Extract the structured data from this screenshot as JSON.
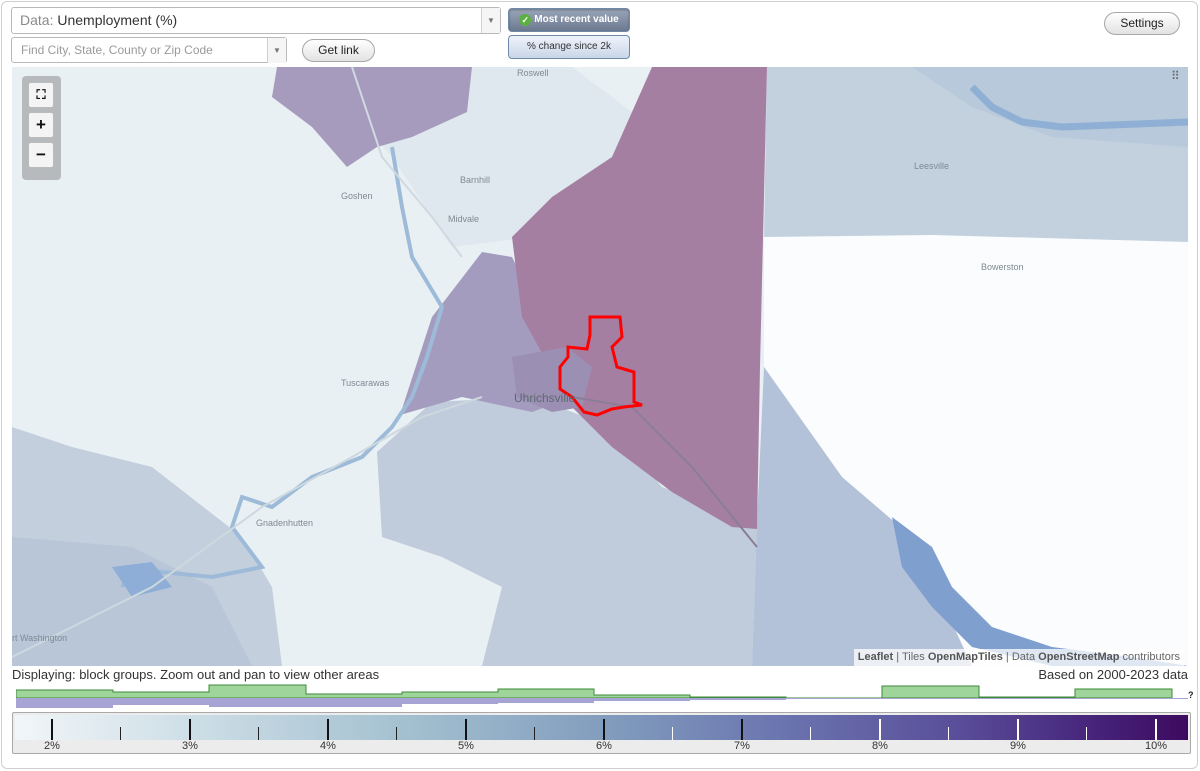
{
  "controls": {
    "data_prefix": "Data:",
    "data_value": "Unemployment (%)",
    "search_placeholder": "Find City, State, County or Zip Code",
    "get_link_label": "Get link",
    "settings_label": "Settings",
    "toggle_active_label": "Most recent value",
    "toggle_inactive_label": "% change since 2k"
  },
  "map": {
    "places": {
      "roswell": "Roswell",
      "leesville": "Leesville",
      "barnhill": "Barnhill",
      "goshen": "Goshen",
      "midvale": "Midvale",
      "bowerston": "Bowerston",
      "tuscarawas": "Tuscarawas",
      "uhrichsville": "Uhrichsville",
      "gnadenhutten": "Gnadenhutten",
      "port_washington": "rt Washington"
    },
    "attribution": {
      "leaflet": "Leaflet",
      "sep1": "|",
      "tiles_prefix": "Tiles",
      "tiles": "OpenMapTiles",
      "sep2": "|",
      "data_prefix": "Data",
      "osm": "OpenStreetMap",
      "suffix": "contributors"
    }
  },
  "status": {
    "displaying": "Displaying: block groups. Zoom out and pan to view other areas",
    "based_on": "Based on 2000-2023 data",
    "question": "?"
  },
  "legend": {
    "labels": [
      "2%",
      "3%",
      "4%",
      "5%",
      "6%",
      "7%",
      "8%",
      "9%",
      "10%"
    ],
    "colors": {
      "low": "#f1f6f9",
      "high": "#3d0a5f",
      "selection": "#ff0000",
      "histogram_green": "#9fd49a",
      "histogram_purple": "#a7a3d4"
    }
  }
}
